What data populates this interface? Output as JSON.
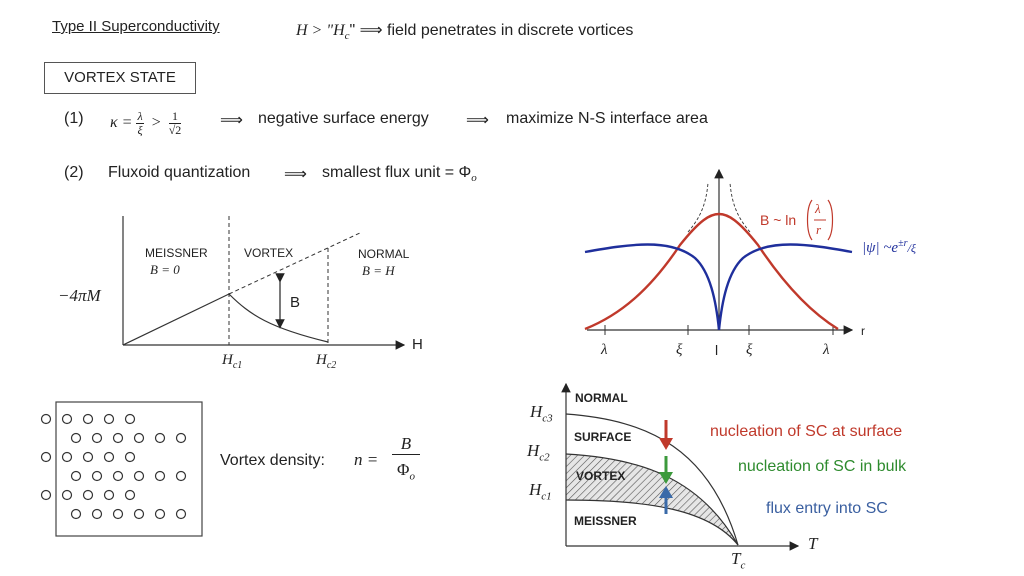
{
  "header": {
    "title": "Type II Superconductivity",
    "condition_lhs": "H > \"H",
    "condition_sub": "c",
    "condition_rhs": "\" ⟹ field penetrates in discrete vortices"
  },
  "vortex_state_label": "VORTEX STATE",
  "point1": {
    "num": "(1)",
    "kappa": "κ =",
    "lambda": "λ",
    "xi": "ξ",
    "gt": ">",
    "one": "1",
    "sqrt2": "√2",
    "arrow1": "⟹",
    "text1": "negative surface energy",
    "arrow2": "⟹",
    "text2": "maximize N-S interface area"
  },
  "point2": {
    "num": "(2)",
    "text1": "Fluxoid quantization",
    "arrow": "⟹",
    "text2": "smallest flux unit = Φ",
    "sub": "o"
  },
  "magnetization_plot": {
    "ylabel": "−4πM",
    "xlabel": "H",
    "meissner_label": "MEISSNER",
    "meissner_eq": "B = 0",
    "vortex_label": "VORTEX",
    "normal_label": "NORMAL",
    "normal_eq": "B = H",
    "b_label": "B",
    "hc1": "H",
    "hc1_sub": "c1",
    "hc2": "H",
    "hc2_sub": "c2"
  },
  "vortex_profile": {
    "b_label": "B ~ ln",
    "b_frac_num": "λ",
    "b_frac_den": "r",
    "psi_label": "|ψ| ~e",
    "psi_exp": "±r",
    "psi_div": "/ξ",
    "r_label": "r",
    "tick_labels": [
      "λ",
      "ξ",
      "l",
      "ξ",
      "λ"
    ]
  },
  "vortex_lattice": {
    "rows": [
      5,
      6,
      5,
      6,
      5,
      6
    ],
    "density_label": "Vortex density:",
    "n_eq": "n =",
    "frac_num": "B",
    "frac_den": "Φ",
    "frac_den_sub": "o"
  },
  "phase_diagram": {
    "normal": "NORMAL",
    "surface": "SURFACE",
    "vortex": "VORTEX",
    "meissner": "MEISSNER",
    "hc3": "H",
    "hc3_sub": "c3",
    "hc2": "H",
    "hc2_sub": "c2",
    "hc1": "H",
    "hc1_sub": "c1",
    "tc": "T",
    "tc_sub": "c",
    "t_label": "T",
    "legend": [
      {
        "text": "nucleation of SC at surface",
        "color": "#c0392b"
      },
      {
        "text": "nucleation of SC in bulk",
        "color": "#2e8b2e"
      },
      {
        "text": "flux entry into SC",
        "color": "#3a5fa0"
      }
    ]
  },
  "colors": {
    "red_curve": "#c0392b",
    "blue_curve": "#1f2f9c",
    "green_arrow": "#3c9a3c",
    "blue_arrow": "#3a6aa8"
  }
}
